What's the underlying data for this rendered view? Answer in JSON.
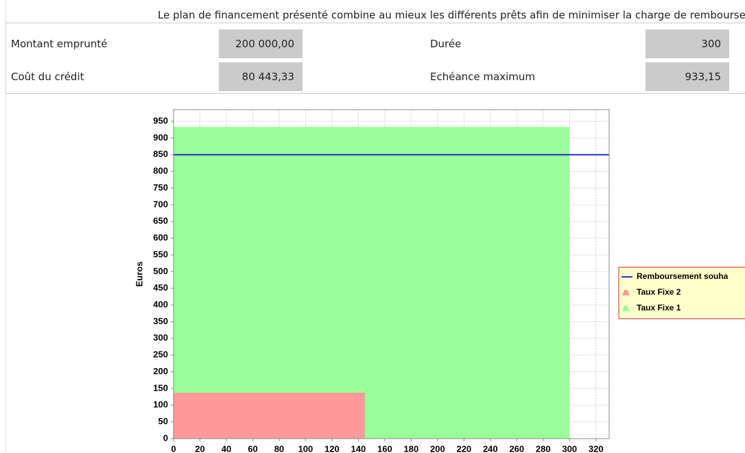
{
  "header": {
    "text": "Le plan de financement présenté combine au mieux les différents prêts afin de minimiser la charge de remboursemen"
  },
  "table": {
    "rows": [
      [
        "Montant emprunté",
        "200 000,00",
        "Durée",
        "300"
      ],
      [
        "Coût du crédit",
        "80 443,33",
        "Echéance maximum",
        "933,15"
      ]
    ]
  },
  "chart_data": {
    "type": "area",
    "stacked": true,
    "ylabel": "Euros",
    "grid": true,
    "legend": "right",
    "xlim": [
      0,
      330
    ],
    "ylim": [
      0,
      985
    ],
    "xticks": [
      0,
      20,
      40,
      60,
      80,
      100,
      120,
      140,
      160,
      180,
      200,
      220,
      240,
      260,
      280,
      300,
      320
    ],
    "yticks": [
      0,
      50,
      100,
      150,
      200,
      250,
      300,
      350,
      400,
      450,
      500,
      550,
      600,
      650,
      700,
      750,
      800,
      850,
      900,
      950
    ],
    "series": [
      {
        "name": "Remboursement souha",
        "type": "line",
        "color": "#2a2ad0",
        "x": [
          0,
          330
        ],
        "values": [
          850,
          850
        ]
      },
      {
        "name": "Taux Fixe 2",
        "type": "area",
        "color": "#ff9999",
        "x": [
          0,
          145,
          145,
          300
        ],
        "values": [
          137.5,
          137.5,
          0,
          0
        ]
      },
      {
        "name": "Taux Fixe 1",
        "type": "area",
        "color": "#99ff99",
        "x": [
          0,
          145,
          145,
          300
        ],
        "values": [
          795.65,
          795.65,
          933.15,
          933.15
        ]
      }
    ]
  }
}
